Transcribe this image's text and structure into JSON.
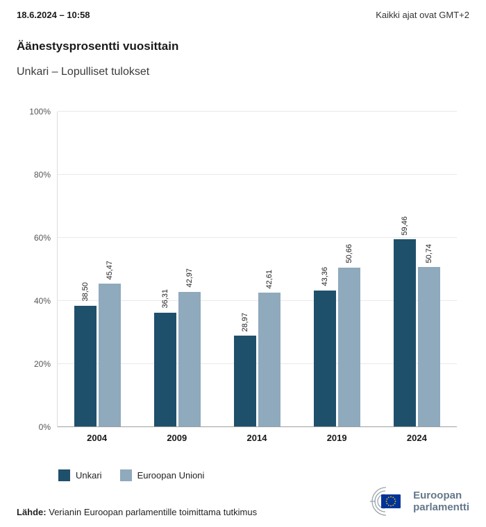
{
  "header": {
    "datetime": "18.6.2024 – 10:58",
    "timezone": "Kaikki ajat ovat GMT+2"
  },
  "title": "Äänestysprosentti vuosittain",
  "subtitle": "Unkari – Lopulliset tulokset",
  "chart_data": {
    "type": "bar",
    "categories": [
      "2004",
      "2009",
      "2014",
      "2019",
      "2024"
    ],
    "series": [
      {
        "name": "Unkari",
        "color": "#1f506b",
        "values": [
          38.5,
          36.31,
          28.97,
          43.36,
          59.46
        ],
        "labels": [
          "38,50",
          "36,31",
          "28,97",
          "43,36",
          "59,46"
        ]
      },
      {
        "name": "Euroopan Unioni",
        "color": "#8fa9bd",
        "values": [
          45.47,
          42.97,
          42.61,
          50.66,
          50.74
        ],
        "labels": [
          "45,47",
          "42,97",
          "42,61",
          "50,66",
          "50,74"
        ]
      }
    ],
    "ylim": [
      0,
      100
    ],
    "yticks": [
      "0%",
      "20%",
      "40%",
      "60%",
      "80%",
      "100%"
    ],
    "grid": true,
    "legend_position": "bottom"
  },
  "footer": {
    "source_label": "Lähde:",
    "source_text": "Verianin Euroopan parlamentille toimittama tutkimus"
  },
  "logo": {
    "line1": "Euroopan",
    "line2": "parlamentti",
    "flag_color": "#003399",
    "star_color": "#ffcc00"
  }
}
